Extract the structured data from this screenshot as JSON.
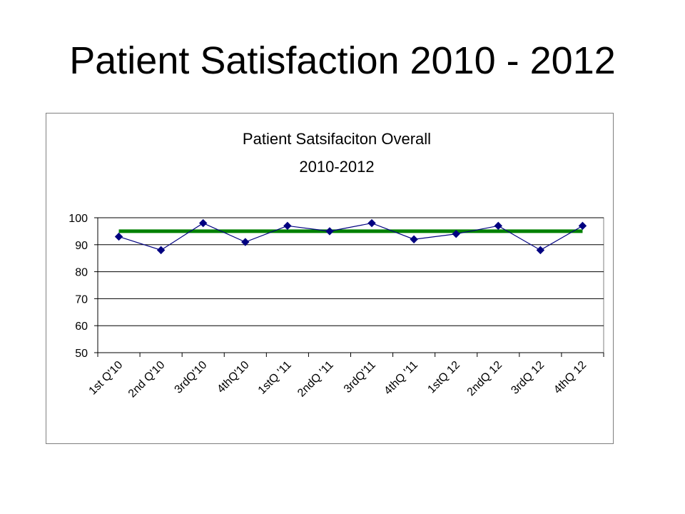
{
  "slide": {
    "title": "Patient Satisfaction 2010 - 2012"
  },
  "chart_data": {
    "type": "line",
    "title": "Patient Satsifaciton Overall",
    "subtitle": "2010-2012",
    "xlabel": "",
    "ylabel": "",
    "ylim": [
      50,
      100
    ],
    "yticks": [
      50,
      60,
      70,
      80,
      90,
      100
    ],
    "grid": true,
    "categories": [
      "1st Q'10",
      "2nd Q'10",
      "3rdQ'10",
      "4thQ'10",
      "1stQ '11",
      "2ndQ '11",
      "3rdQ'11",
      "4thQ '11",
      "1stQ 12",
      "2ndQ 12",
      "3rdQ 12",
      "4thQ 12"
    ],
    "series": [
      {
        "values": [
          93,
          88,
          98,
          91,
          97,
          95,
          98,
          92,
          94,
          97,
          88,
          97
        ],
        "color": "#000080",
        "marker": "diamond"
      },
      {
        "values": [
          95,
          95,
          95,
          95,
          95,
          95,
          95,
          95,
          95,
          95,
          95,
          95
        ],
        "color": "#008000",
        "marker": "none"
      }
    ]
  }
}
